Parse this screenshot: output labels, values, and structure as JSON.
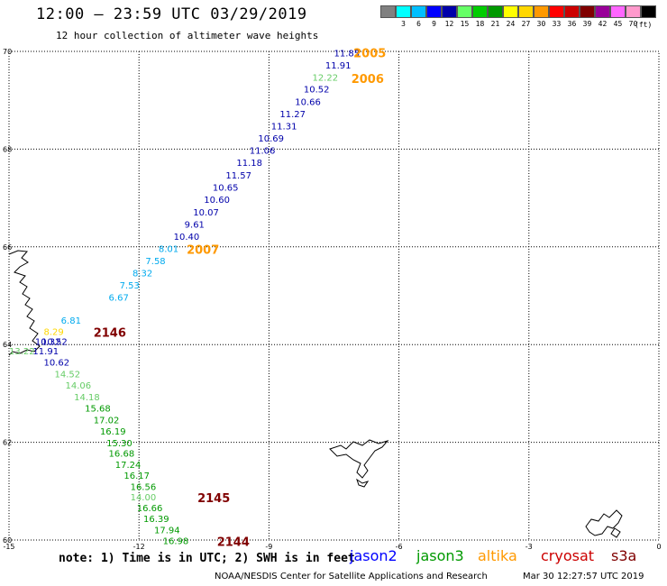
{
  "header": {
    "title": "12:00 — 23:59 UTC 03/29/2019",
    "subtitle": "12 hour collection of altimeter wave heights"
  },
  "legend": {
    "unit": "(ft)",
    "bins": [
      {
        "color": "#808080",
        "label": ""
      },
      {
        "color": "#00ffff",
        "label": "3"
      },
      {
        "color": "#00bfff",
        "label": "6"
      },
      {
        "color": "#0000ff",
        "label": "9"
      },
      {
        "color": "#0000aa",
        "label": "12"
      },
      {
        "color": "#66ff66",
        "label": "15"
      },
      {
        "color": "#00cc00",
        "label": "18"
      },
      {
        "color": "#009900",
        "label": "21"
      },
      {
        "color": "#ffff00",
        "label": "24"
      },
      {
        "color": "#ffd700",
        "label": "27"
      },
      {
        "color": "#ff9900",
        "label": "30"
      },
      {
        "color": "#ff0000",
        "label": "33"
      },
      {
        "color": "#cc0000",
        "label": "36"
      },
      {
        "color": "#800000",
        "label": "39"
      },
      {
        "color": "#990099",
        "label": "42"
      },
      {
        "color": "#ff66ff",
        "label": "45"
      },
      {
        "color": "#ff99cc",
        "label": "70"
      },
      {
        "color": "#000000",
        "label": ""
      }
    ]
  },
  "axes": {
    "lat_labels": [
      "70",
      "68",
      "66",
      "64",
      "62",
      "60"
    ],
    "lon_labels": [
      "-15",
      "-12",
      "-9",
      "-6",
      "-3",
      "0"
    ]
  },
  "observations": [
    {
      "v": "11.85",
      "lon": -7.5,
      "lat": 69.97,
      "c": "#0000aa"
    },
    {
      "v": "11.91",
      "lon": -7.7,
      "lat": 69.72,
      "c": "#0000aa"
    },
    {
      "v": "12.22",
      "lon": -8.0,
      "lat": 69.47,
      "c": "#66cc66"
    },
    {
      "v": "10.52",
      "lon": -8.2,
      "lat": 69.23,
      "c": "#0000aa"
    },
    {
      "v": "10.66",
      "lon": -8.4,
      "lat": 68.98,
      "c": "#0000aa"
    },
    {
      "v": "11.27",
      "lon": -8.75,
      "lat": 68.73,
      "c": "#0000aa"
    },
    {
      "v": "11.31",
      "lon": -8.95,
      "lat": 68.48,
      "c": "#0000aa"
    },
    {
      "v": "10.69",
      "lon": -9.25,
      "lat": 68.23,
      "c": "#0000aa"
    },
    {
      "v": "11.06",
      "lon": -9.45,
      "lat": 67.98,
      "c": "#0000aa"
    },
    {
      "v": "11.18",
      "lon": -9.75,
      "lat": 67.73,
      "c": "#0000aa"
    },
    {
      "v": "11.57",
      "lon": -10.0,
      "lat": 67.47,
      "c": "#0000aa"
    },
    {
      "v": "10.65",
      "lon": -10.3,
      "lat": 67.22,
      "c": "#0000aa"
    },
    {
      "v": "10.60",
      "lon": -10.5,
      "lat": 66.97,
      "c": "#0000aa"
    },
    {
      "v": "10.07",
      "lon": -10.75,
      "lat": 66.72,
      "c": "#0000aa"
    },
    {
      "v": "9.61",
      "lon": -10.95,
      "lat": 66.47,
      "c": "#0000aa"
    },
    {
      "v": "10.40",
      "lon": -11.2,
      "lat": 66.22,
      "c": "#0000aa"
    },
    {
      "v": "8.01",
      "lon": -11.55,
      "lat": 65.97,
      "c": "#00aaee"
    },
    {
      "v": "7.58",
      "lon": -11.85,
      "lat": 65.72,
      "c": "#00aaee"
    },
    {
      "v": "8.32",
      "lon": -12.15,
      "lat": 65.47,
      "c": "#00aaee"
    },
    {
      "v": "7.53",
      "lon": -12.45,
      "lat": 65.22,
      "c": "#00aaee"
    },
    {
      "v": "6.67",
      "lon": -12.7,
      "lat": 64.97,
      "c": "#00aaee"
    },
    {
      "v": "6.81",
      "lon": -13.8,
      "lat": 64.5,
      "c": "#00aaee"
    },
    {
      "v": "8.29",
      "lon": -14.2,
      "lat": 64.27,
      "c": "#ffd700"
    },
    {
      "v": "10.32",
      "lon": -14.4,
      "lat": 64.07,
      "c": "#0000aa"
    },
    {
      "v": "10.52",
      "lon": -14.25,
      "lat": 64.07,
      "c": "#0000aa"
    },
    {
      "v": "13.22",
      "lon": -15.0,
      "lat": 63.87,
      "c": "#66cc66"
    },
    {
      "v": "11.91",
      "lon": -14.45,
      "lat": 63.87,
      "c": "#0000aa"
    },
    {
      "v": "10.62",
      "lon": -14.2,
      "lat": 63.64,
      "c": "#0000aa"
    },
    {
      "v": "14.52",
      "lon": -13.95,
      "lat": 63.4,
      "c": "#66cc66"
    },
    {
      "v": "14.06",
      "lon": -13.7,
      "lat": 63.17,
      "c": "#66cc66"
    },
    {
      "v": "14.18",
      "lon": -13.5,
      "lat": 62.93,
      "c": "#66cc66"
    },
    {
      "v": "15.68",
      "lon": -13.25,
      "lat": 62.7,
      "c": "#009900"
    },
    {
      "v": "17.02",
      "lon": -13.05,
      "lat": 62.46,
      "c": "#009900"
    },
    {
      "v": "16.19",
      "lon": -12.9,
      "lat": 62.23,
      "c": "#009900"
    },
    {
      "v": "15.30",
      "lon": -12.75,
      "lat": 61.99,
      "c": "#009900"
    },
    {
      "v": "16.68",
      "lon": -12.7,
      "lat": 61.78,
      "c": "#009900"
    },
    {
      "v": "17.24",
      "lon": -12.55,
      "lat": 61.55,
      "c": "#009900"
    },
    {
      "v": "16.17",
      "lon": -12.35,
      "lat": 61.33,
      "c": "#009900"
    },
    {
      "v": "16.56",
      "lon": -12.2,
      "lat": 61.1,
      "c": "#009900"
    },
    {
      "v": "14.00",
      "lon": -12.2,
      "lat": 60.89,
      "c": "#66cc66"
    },
    {
      "v": "16.66",
      "lon": -12.05,
      "lat": 60.66,
      "c": "#009900"
    },
    {
      "v": "16.39",
      "lon": -11.9,
      "lat": 60.44,
      "c": "#009900"
    },
    {
      "v": "17.94",
      "lon": -11.65,
      "lat": 60.21,
      "c": "#009900"
    },
    {
      "v": "16.98",
      "lon": -11.45,
      "lat": 59.99,
      "c": "#009900"
    }
  ],
  "pass_labels": [
    {
      "text": "2005",
      "lon": -7.05,
      "lat": 69.97,
      "c": "#ff9900"
    },
    {
      "text": "2006",
      "lon": -7.1,
      "lat": 69.45,
      "c": "#ff9900"
    },
    {
      "text": "2007",
      "lon": -10.9,
      "lat": 65.95,
      "c": "#ff9900"
    },
    {
      "text": "2146",
      "lon": -13.05,
      "lat": 64.25,
      "c": "#800000"
    },
    {
      "text": "2145",
      "lon": -10.65,
      "lat": 60.87,
      "c": "#800000"
    },
    {
      "text": "2144",
      "lon": -10.2,
      "lat": 59.97,
      "c": "#800000"
    }
  ],
  "footer": {
    "note": "note: 1) Time is in UTC; 2) SWH is in feet",
    "satellites": [
      {
        "name": "jason2",
        "color": "#0000ff"
      },
      {
        "name": "jason3",
        "color": "#009900"
      },
      {
        "name": "altika",
        "color": "#ff9900"
      },
      {
        "name": "cryosat",
        "color": "#cc0000"
      },
      {
        "name": "s3a",
        "color": "#800000"
      }
    ],
    "credit": "NOAA/NESDIS Center for Satellite Applications and Research",
    "timestamp": "Mar 30 12:27:57 UTC 2019"
  }
}
